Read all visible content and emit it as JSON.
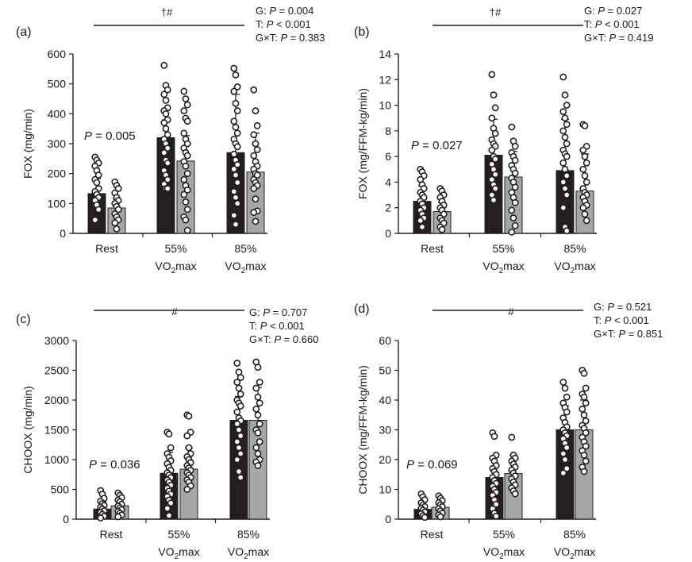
{
  "colors": {
    "group1": "#231f20",
    "group2": "#a6a6a6",
    "point_fill": "#ffffff",
    "point_stroke": "#231f20",
    "axis": "#231f20"
  },
  "chart_data": [
    {
      "panel": "(a)",
      "type": "bar",
      "ylabel": "FOX (mg/min)",
      "ylim": [
        0,
        600
      ],
      "yticks": [
        0,
        100,
        200,
        300,
        400,
        500,
        600
      ],
      "categories": [
        "Rest",
        "55% VO2max",
        "85% VO2max"
      ],
      "cat_top": [
        "Rest",
        "55%",
        "85%"
      ],
      "cat_main": [
        "",
        "VO",
        "VO"
      ],
      "cat_sub": [
        "",
        "2",
        "2"
      ],
      "cat_tail": [
        "",
        "max",
        "max"
      ],
      "series": [
        {
          "values": [
            133,
            320,
            270
          ],
          "sd": [
            50,
            60,
            195
          ],
          "points": [
            [
              255,
              245,
              235,
              225,
              210,
              195,
              180,
              170,
              150,
              140,
              130,
              120,
              110,
              95,
              80,
              45
            ],
            [
              562,
              495,
              480,
              465,
              445,
              420,
              410,
              400,
              380,
              370,
              350,
              330,
              315,
              300,
              285,
              270,
              245,
              235,
              210,
              195,
              180,
              165,
              150,
              150
            ],
            [
              552,
              530,
              490,
              475,
              435,
              410,
              375,
              355,
              335,
              315,
              300,
              290,
              265,
              245,
              230,
              215,
              195,
              170,
              140,
              120,
              100,
              60,
              30
            ]
          ]
        },
        {
          "values": [
            85,
            242,
            205
          ],
          "sd": [
            30,
            85,
            130
          ],
          "points": [
            [
              172,
              160,
              150,
              135,
              120,
              110,
              100,
              90,
              80,
              65,
              55,
              45,
              35,
              15
            ],
            [
              475,
              450,
              430,
              410,
              385,
              375,
              335,
              315,
              300,
              285,
              270,
              260,
              240,
              225,
              200,
              180,
              160,
              145,
              130,
              105,
              80,
              55,
              45,
              10
            ],
            [
              480,
              410,
              360,
              330,
              300,
              280,
              260,
              240,
              225,
              215,
              200,
              195,
              180,
              170,
              160,
              150,
              115,
              75,
              70,
              40
            ]
          ]
        }
      ],
      "annotations": {
        "sig_symbols": "†#",
        "stats_lines": [
          "G: P = 0.004",
          "T: P < 0.001",
          "G×T: P = 0.383"
        ],
        "rest_p": "P = 0.005"
      }
    },
    {
      "panel": "(b)",
      "type": "bar",
      "ylabel": "FOX (mg/FFM-kg/min)",
      "ylim": [
        0,
        14
      ],
      "yticks": [
        0,
        2,
        4,
        6,
        8,
        10,
        12,
        14
      ],
      "categories": [
        "Rest",
        "55% VO2max",
        "85% VO2max"
      ],
      "cat_top": [
        "Rest",
        "55%",
        "85%"
      ],
      "cat_main": [
        "",
        "VO",
        "VO"
      ],
      "cat_sub": [
        "",
        "2",
        "2"
      ],
      "cat_tail": [
        "",
        "max",
        "max"
      ],
      "series": [
        {
          "values": [
            2.5,
            6.1,
            4.9
          ],
          "sd": [
            1.2,
            2.8,
            4.0
          ],
          "points": [
            [
              5.0,
              4.8,
              4.5,
              4.2,
              3.8,
              3.5,
              3.2,
              3.0,
              2.8,
              2.5,
              2.3,
              2.0,
              1.8,
              1.5,
              1.2,
              1.0,
              0.5
            ],
            [
              12.4,
              10.8,
              9.8,
              9.0,
              8.2,
              7.8,
              7.3,
              7.0,
              6.8,
              6.5,
              6.0,
              5.8,
              5.4,
              5.0,
              4.6,
              4.2,
              3.8,
              3.5,
              3.0,
              2.6
            ],
            [
              12.2,
              10.8,
              10.0,
              9.5,
              9.0,
              8.5,
              8.0,
              7.5,
              7.0,
              6.5,
              6.2,
              6.0,
              5.5,
              5.0,
              4.5,
              4.0,
              3.5,
              3.0,
              2.0,
              0.5,
              0.2
            ]
          ]
        },
        {
          "values": [
            1.7,
            4.4,
            3.3
          ],
          "sd": [
            0.7,
            2.0,
            2.9
          ],
          "points": [
            [
              3.5,
              3.3,
              3.0,
              2.8,
              2.5,
              2.2,
              2.0,
              1.8,
              1.5,
              1.2,
              1.0,
              0.8,
              0.5,
              0.3
            ],
            [
              8.3,
              7.2,
              6.8,
              6.3,
              6.0,
              5.7,
              5.3,
              5.0,
              4.7,
              4.3,
              4.0,
              3.6,
              3.2,
              2.8,
              2.4,
              1.8,
              1.2,
              0.6,
              0.1
            ],
            [
              8.5,
              8.4,
              6.8,
              6.5,
              6.0,
              5.5,
              5.0,
              4.5,
              4.0,
              3.5,
              3.2,
              3.0,
              2.8,
              2.5,
              2.2,
              2.0,
              1.5,
              1.0
            ]
          ]
        }
      ],
      "annotations": {
        "sig_symbols": "†#",
        "stats_lines": [
          "G: P = 0.027",
          "T: P < 0.001",
          "G×T: P = 0.419"
        ],
        "rest_p": "P = 0.027"
      }
    },
    {
      "panel": "(c)",
      "type": "bar",
      "ylabel": "CHOOX (mg/min)",
      "ylim": [
        0,
        3000
      ],
      "yticks": [
        0,
        500,
        1000,
        1500,
        2000,
        2500,
        3000
      ],
      "categories": [
        "Rest",
        "55% VO2max",
        "85% VO2max"
      ],
      "cat_top": [
        "Rest",
        "55%",
        "85%"
      ],
      "cat_main": [
        "",
        "VO",
        "VO"
      ],
      "cat_sub": [
        "",
        "2",
        "2"
      ],
      "cat_tail": [
        "",
        "max",
        "max"
      ],
      "series": [
        {
          "values": [
            170,
            770,
            1660
          ],
          "sd": [
            120,
            350,
            400
          ],
          "points": [
            [
              480,
              420,
              350,
              300,
              260,
              230,
              200,
              170,
              140,
              110,
              80,
              50,
              20
            ],
            [
              1460,
              1430,
              1200,
              1100,
              1040,
              980,
              930,
              870,
              820,
              780,
              740,
              700,
              660,
              620,
              570,
              520,
              470,
              420,
              380,
              320,
              270,
              180,
              60
            ],
            [
              2620,
              2470,
              2380,
              2300,
              2200,
              2100,
              2000,
              1950,
              1900,
              1800,
              1700,
              1650,
              1600,
              1500,
              1400,
              1300,
              1200,
              1100,
              1000,
              800,
              700
            ]
          ]
        },
        {
          "values": [
            225,
            840,
            1660
          ],
          "sd": [
            100,
            350,
            550
          ],
          "points": [
            [
              440,
              400,
              360,
              320,
              290,
              250,
              220,
              190,
              160,
              130,
              100,
              70,
              40
            ],
            [
              1750,
              1730,
              1460,
              1400,
              1200,
              1100,
              1050,
              1000,
              950,
              900,
              860,
              820,
              780,
              740,
              700,
              660,
              620,
              560,
              500
            ],
            [
              2640,
              2550,
              2300,
              2200,
              2050,
              1950,
              1850,
              1750,
              1600,
              1500,
              1450,
              1300,
              1200,
              1100,
              1000,
              960,
              900
            ]
          ]
        }
      ],
      "annotations": {
        "sig_symbols": "#",
        "stats_lines": [
          "G: P = 0.707",
          "T: P < 0.001",
          "G×T: P = 0.660"
        ],
        "rest_p": "P = 0.036"
      }
    },
    {
      "panel": "(d)",
      "type": "bar",
      "ylabel": "CHOOX (mg/FFM-kg/min)",
      "ylim": [
        0,
        60
      ],
      "yticks": [
        0,
        10,
        20,
        30,
        40,
        50,
        60
      ],
      "categories": [
        "Rest",
        "55% VO2max",
        "85% VO2max"
      ],
      "cat_top": [
        "Rest",
        "55%",
        "85%"
      ],
      "cat_main": [
        "",
        "VO",
        "VO"
      ],
      "cat_sub": [
        "",
        "2",
        "2"
      ],
      "cat_tail": [
        "",
        "max",
        "max"
      ],
      "series": [
        {
          "values": [
            3.3,
            14.0,
            30.0
          ],
          "sd": [
            2.5,
            7.0,
            8.0
          ],
          "points": [
            [
              8.5,
              7.5,
              6.5,
              5.5,
              4.8,
              4.2,
              3.6,
              3.0,
              2.4,
              1.8,
              1.2,
              0.6
            ],
            [
              29.0,
              27.8,
              21.5,
              20.5,
              19.5,
              18.0,
              17.0,
              16.0,
              15.0,
              14.0,
              13.0,
              12.0,
              11.0,
              10.0,
              9.0,
              8.0,
              6.5,
              5.0,
              3.5,
              2.0,
              1.0
            ],
            [
              46.0,
              44.0,
              41.0,
              39.0,
              37.5,
              36.0,
              34.0,
              32.5,
              31.0,
              30.0,
              29.0,
              28.0,
              27.0,
              25.5,
              24.0,
              22.0,
              20.0,
              17.0,
              15.5
            ]
          ]
        },
        {
          "values": [
            4.0,
            15.3,
            30.0
          ],
          "sd": [
            2.0,
            6.0,
            10.0
          ],
          "points": [
            [
              7.8,
              7.0,
              6.2,
              5.5,
              4.8,
              4.2,
              3.5,
              2.8,
              2.0,
              1.4,
              0.8
            ],
            [
              27.5,
              21.5,
              20.5,
              19.5,
              18.5,
              17.5,
              16.5,
              15.5,
              14.5,
              13.5,
              12.5,
              11.5,
              10.5,
              9.5,
              8.5
            ],
            [
              50.0,
              49.0,
              44.0,
              42.0,
              41.0,
              39.0,
              37.0,
              35.0,
              33.0,
              31.5,
              30.5,
              29.0,
              27.5,
              26.0,
              24.5,
              23.0,
              21.5,
              19.5,
              17.5,
              16.0
            ]
          ]
        }
      ],
      "annotations": {
        "sig_symbols": "#",
        "stats_lines": [
          "G: P = 0.521",
          "T: P < 0.001",
          "G×T: P = 0.851"
        ],
        "rest_p": "P = 0.069"
      }
    }
  ]
}
